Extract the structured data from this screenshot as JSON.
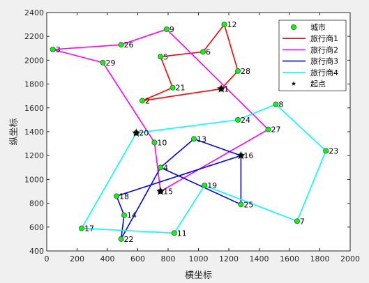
{
  "chart_data": {
    "type": "line",
    "xlabel": "横坐标",
    "ylabel": "纵坐标",
    "xlim": [
      0,
      2000
    ],
    "ylim": [
      400,
      2400
    ],
    "xticks": [
      0,
      200,
      400,
      600,
      800,
      1000,
      1200,
      1400,
      1600,
      1800,
      2000
    ],
    "yticks": [
      400,
      600,
      800,
      1000,
      1200,
      1400,
      1600,
      1800,
      2000,
      2200,
      2400
    ],
    "grid": false,
    "legend_position": "top-right",
    "cities": [
      {
        "id": "1",
        "x": 1150,
        "y": 1760
      },
      {
        "id": "2",
        "x": 630,
        "y": 1660
      },
      {
        "id": "3",
        "x": 40,
        "y": 2090
      },
      {
        "id": "4",
        "x": 750,
        "y": 1100
      },
      {
        "id": "5",
        "x": 750,
        "y": 2030
      },
      {
        "id": "6",
        "x": 1030,
        "y": 2070
      },
      {
        "id": "7",
        "x": 1650,
        "y": 650
      },
      {
        "id": "8",
        "x": 1510,
        "y": 1630
      },
      {
        "id": "9",
        "x": 790,
        "y": 2260
      },
      {
        "id": "10",
        "x": 710,
        "y": 1310
      },
      {
        "id": "11",
        "x": 840,
        "y": 550
      },
      {
        "id": "12",
        "x": 1170,
        "y": 2300
      },
      {
        "id": "13",
        "x": 970,
        "y": 1340
      },
      {
        "id": "14",
        "x": 510,
        "y": 700
      },
      {
        "id": "15",
        "x": 750,
        "y": 900
      },
      {
        "id": "16",
        "x": 1280,
        "y": 1200
      },
      {
        "id": "17",
        "x": 230,
        "y": 590
      },
      {
        "id": "18",
        "x": 460,
        "y": 860
      },
      {
        "id": "19",
        "x": 1040,
        "y": 950
      },
      {
        "id": "20",
        "x": 590,
        "y": 1390
      },
      {
        "id": "21",
        "x": 830,
        "y": 1770
      },
      {
        "id": "22",
        "x": 490,
        "y": 500
      },
      {
        "id": "23",
        "x": 1840,
        "y": 1240
      },
      {
        "id": "24",
        "x": 1260,
        "y": 1500
      },
      {
        "id": "25",
        "x": 1280,
        "y": 790
      },
      {
        "id": "26",
        "x": 490,
        "y": 2130
      },
      {
        "id": "27",
        "x": 1460,
        "y": 1420
      },
      {
        "id": "28",
        "x": 1260,
        "y": 1910
      },
      {
        "id": "29",
        "x": 370,
        "y": 1980
      }
    ],
    "start_points": [
      {
        "x": 1150,
        "y": 1760
      },
      {
        "x": 590,
        "y": 1390
      },
      {
        "x": 1280,
        "y": 1200
      },
      {
        "x": 750,
        "y": 900
      }
    ],
    "series": [
      {
        "name": "旅行商1",
        "color": "#ff0000",
        "route": [
          "1",
          "28",
          "12",
          "6",
          "5",
          "21",
          "2",
          "1"
        ]
      },
      {
        "name": "旅行商2",
        "color": "#ff00ff",
        "route": [
          "15",
          "27",
          "9",
          "26",
          "3",
          "29",
          "10",
          "15"
        ]
      },
      {
        "name": "旅行商3",
        "color": "#0000ff",
        "route": [
          "16",
          "13",
          "4",
          "25",
          "16",
          "18",
          "14",
          "22",
          "4",
          "25"
        ]
      },
      {
        "name": "旅行商4",
        "color": "#00ffff",
        "route": [
          "20",
          "24",
          "8",
          "23",
          "7",
          "19",
          "11",
          "17",
          "20"
        ]
      }
    ],
    "legend": {
      "city_label": "城市",
      "start_label": "起点"
    },
    "colors": {
      "city_fill": "#00ff00",
      "start": "#000000"
    }
  }
}
